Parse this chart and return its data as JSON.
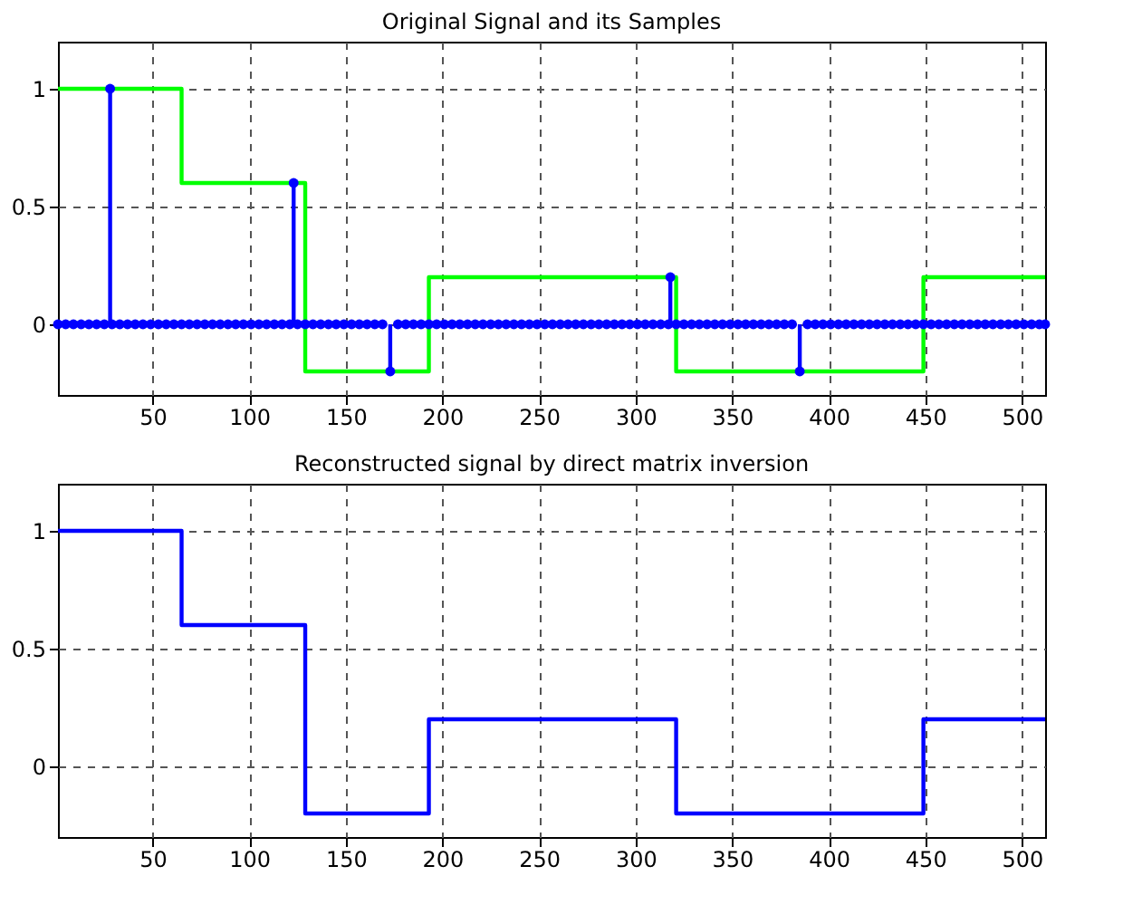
{
  "chart_data": [
    {
      "type": "line",
      "title": "Original Signal and its Samples",
      "xlim": [
        1,
        512
      ],
      "xticks": [
        50,
        100,
        150,
        200,
        250,
        300,
        350,
        400,
        450,
        500
      ],
      "ylim": [
        -0.3,
        1.2
      ],
      "yticks": [
        0,
        0.5,
        1
      ],
      "grid": true,
      "series": [
        {
          "type": "step",
          "color": "#00ff00",
          "x": [
            1,
            65,
            129,
            193,
            321,
            449,
            512
          ],
          "values": [
            1,
            0.6,
            -0.2,
            0.2,
            -0.2,
            0.2,
            0.2
          ]
        },
        {
          "type": "lollipop",
          "color": "#0000ff",
          "marker": "circle",
          "x": [
            1,
            5,
            9,
            13,
            17,
            21,
            25,
            28,
            29,
            33,
            37,
            41,
            45,
            49,
            53,
            57,
            61,
            65,
            69,
            73,
            77,
            81,
            85,
            89,
            93,
            97,
            101,
            105,
            109,
            113,
            117,
            121,
            123,
            125,
            129,
            133,
            137,
            141,
            145,
            149,
            153,
            157,
            161,
            165,
            169,
            173,
            177,
            181,
            185,
            189,
            193,
            197,
            201,
            205,
            209,
            213,
            217,
            221,
            225,
            229,
            233,
            237,
            241,
            245,
            249,
            253,
            257,
            261,
            265,
            269,
            273,
            277,
            281,
            285,
            289,
            293,
            297,
            301,
            305,
            309,
            313,
            317,
            318,
            321,
            325,
            329,
            333,
            337,
            341,
            345,
            349,
            353,
            357,
            361,
            365,
            369,
            373,
            377,
            381,
            385,
            389,
            393,
            397,
            401,
            405,
            409,
            413,
            417,
            421,
            425,
            429,
            433,
            437,
            441,
            445,
            449,
            453,
            457,
            461,
            465,
            469,
            473,
            477,
            481,
            485,
            489,
            493,
            497,
            501,
            505,
            509,
            512
          ],
          "values": [
            0,
            0,
            0,
            0,
            0,
            0,
            0,
            1,
            0,
            0,
            0,
            0,
            0,
            0,
            0,
            0,
            0,
            0,
            0,
            0,
            0,
            0,
            0,
            0,
            0,
            0,
            0,
            0,
            0,
            0,
            0,
            0,
            0.6,
            0,
            0,
            0,
            0,
            0,
            0,
            0,
            0,
            0,
            0,
            0,
            0,
            -0.2,
            0,
            0,
            0,
            0,
            0,
            0,
            0,
            0,
            0,
            0,
            0,
            0,
            0,
            0,
            0,
            0,
            0,
            0,
            0,
            0,
            0,
            0,
            0,
            0,
            0,
            0,
            0,
            0,
            0,
            0,
            0,
            0,
            0,
            0,
            0,
            0,
            0.2,
            0,
            0,
            0,
            0,
            0,
            0,
            0,
            0,
            0,
            0,
            0,
            0,
            0,
            0,
            0,
            0,
            -0.2,
            0,
            0,
            0,
            0,
            0,
            0,
            0,
            0,
            0,
            0,
            0,
            0,
            0,
            0,
            0,
            0,
            0,
            0,
            0,
            0,
            0,
            0,
            0,
            0,
            0,
            0,
            0,
            0,
            0,
            0,
            0,
            0
          ]
        }
      ]
    },
    {
      "type": "step",
      "title": "Reconstructed signal by direct matrix inversion",
      "xlim": [
        1,
        512
      ],
      "xticks": [
        50,
        100,
        150,
        200,
        250,
        300,
        350,
        400,
        450,
        500
      ],
      "ylim": [
        -0.3,
        1.2
      ],
      "yticks": [
        0,
        0.5,
        1
      ],
      "grid": true,
      "series": [
        {
          "color": "#0000ff",
          "x": [
            1,
            65,
            129,
            193,
            321,
            449,
            512
          ],
          "values": [
            1,
            0.6,
            -0.2,
            0.2,
            -0.2,
            0.2,
            0.2
          ]
        }
      ]
    }
  ]
}
